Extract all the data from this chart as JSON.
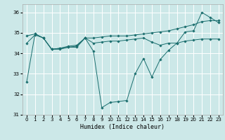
{
  "title": "",
  "xlabel": "Humidex (Indice chaleur)",
  "xlim": [
    -0.5,
    23.5
  ],
  "ylim": [
    31,
    36.4
  ],
  "yticks": [
    31,
    32,
    33,
    34,
    35,
    36
  ],
  "xticks": [
    0,
    1,
    2,
    3,
    4,
    5,
    6,
    7,
    8,
    9,
    10,
    11,
    12,
    13,
    14,
    15,
    16,
    17,
    18,
    19,
    20,
    21,
    22,
    23
  ],
  "bg_color": "#cce8e8",
  "line_color": "#1a6e6e",
  "grid_color": "#ffffff",
  "series": [
    {
      "x": [
        0,
        1,
        2,
        3,
        4,
        5,
        6,
        7,
        8,
        9,
        10,
        11,
        12,
        13,
        14,
        15,
        16,
        17,
        18,
        19,
        20,
        21,
        22,
        23
      ],
      "y": [
        32.6,
        34.95,
        34.75,
        34.2,
        34.2,
        34.3,
        34.3,
        34.75,
        34.1,
        31.35,
        31.6,
        31.65,
        31.7,
        33.0,
        33.75,
        32.85,
        33.7,
        34.15,
        34.5,
        35.05,
        35.1,
        36.0,
        35.75,
        35.5
      ]
    },
    {
      "x": [
        0,
        1,
        2,
        3,
        4,
        5,
        6,
        7,
        8,
        9,
        10,
        11,
        12,
        13,
        14,
        15,
        16,
        17,
        18,
        19,
        20,
        21,
        22,
        23
      ],
      "y": [
        34.85,
        34.95,
        34.75,
        34.2,
        34.25,
        34.35,
        34.4,
        34.75,
        34.75,
        34.8,
        34.85,
        34.85,
        34.85,
        34.9,
        34.95,
        35.0,
        35.05,
        35.1,
        35.2,
        35.3,
        35.4,
        35.55,
        35.6,
        35.6
      ]
    },
    {
      "x": [
        0,
        1,
        2,
        3,
        4,
        5,
        6,
        7,
        8,
        9,
        10,
        11,
        12,
        13,
        14,
        15,
        16,
        17,
        18,
        19,
        20,
        21,
        22,
        23
      ],
      "y": [
        34.5,
        34.9,
        34.75,
        34.2,
        34.25,
        34.3,
        34.35,
        34.75,
        34.5,
        34.55,
        34.6,
        34.6,
        34.65,
        34.7,
        34.75,
        34.55,
        34.4,
        34.5,
        34.5,
        34.6,
        34.65,
        34.7,
        34.7,
        34.7
      ]
    }
  ]
}
